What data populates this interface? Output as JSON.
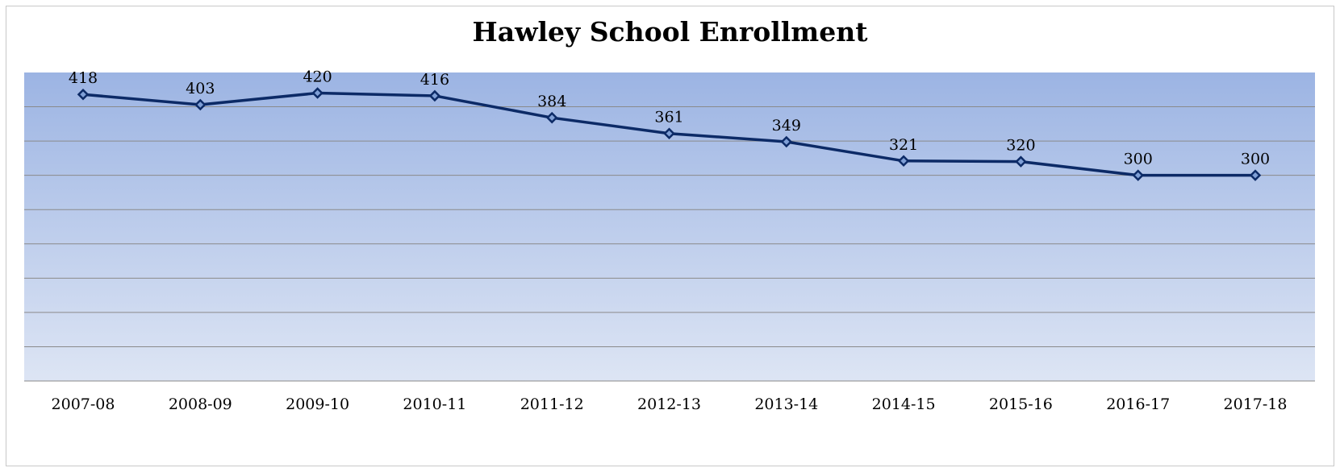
{
  "chart_data": {
    "type": "line",
    "title": "Hawley School Enrollment",
    "categories": [
      "2007-08",
      "2008-09",
      "2009-10",
      "2010-11",
      "2011-12",
      "2012-13",
      "2013-14",
      "2014-15",
      "2015-16",
      "2016-17",
      "2017-18"
    ],
    "series": [
      {
        "values": [
          418,
          403,
          420,
          416,
          384,
          361,
          349,
          321,
          320,
          300,
          300
        ]
      }
    ],
    "ylim": [
      0,
      450
    ],
    "gridlines": true,
    "data_labels": true,
    "legend": "none",
    "colors": {
      "line": "#0c2a66",
      "marker_fill": "#7f9fd6",
      "plot_top": "#9cb4e3",
      "plot_bottom": "#dde5f4",
      "gridline": "#8a8a8a"
    }
  }
}
